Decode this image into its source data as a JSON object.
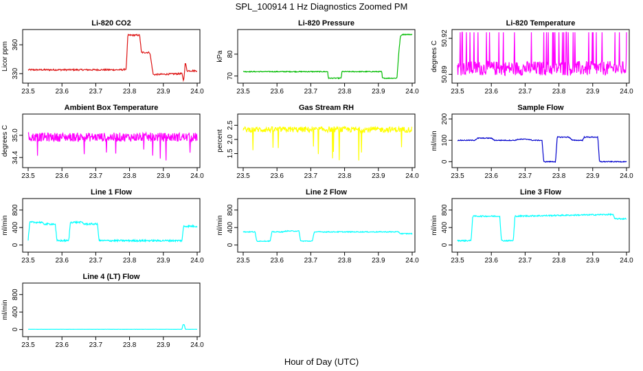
{
  "figure": {
    "title": "SPL_100914  1 Hz Diagnostics Zoomed PM",
    "xlabel": "Hour of Day (UTC)"
  },
  "chart_data": [
    {
      "type": "line",
      "title": "Li-820 CO2",
      "ylabel": "Licor ppm",
      "color": "#dd1111",
      "xlim": [
        23.5,
        24.0
      ],
      "ylim": [
        323,
        373
      ],
      "xticks": [
        "23.5",
        "23.6",
        "23.7",
        "23.8",
        "23.9",
        "24.0"
      ],
      "yticks": [
        {
          "v": 330,
          "label": "330"
        },
        {
          "v": 360,
          "label": "360"
        }
      ],
      "x": [
        23.5,
        23.6,
        23.7,
        23.78,
        23.79,
        23.795,
        23.83,
        23.835,
        23.86,
        23.87,
        23.955,
        23.96,
        23.965,
        23.97,
        24.0
      ],
      "y": [
        334,
        334,
        334,
        334,
        335,
        370,
        370,
        352,
        352,
        329,
        330,
        322,
        342,
        333,
        333
      ],
      "noise": 0.8
    },
    {
      "type": "line",
      "title": "Li-820 Pressure",
      "ylabel": "kPa",
      "color": "#00bb00",
      "xlim": [
        23.5,
        24.0
      ],
      "ylim": [
        68,
        90
      ],
      "xticks": [
        "23.5",
        "23.6",
        "23.7",
        "23.8",
        "23.9",
        "24.0"
      ],
      "yticks": [
        {
          "v": 70,
          "label": "70"
        },
        {
          "v": 80,
          "label": "80"
        }
      ],
      "x": [
        23.5,
        23.75,
        23.752,
        23.79,
        23.792,
        23.91,
        23.912,
        23.955,
        23.96,
        23.965,
        23.97,
        24.0
      ],
      "y": [
        72,
        72,
        69,
        69,
        72,
        72,
        69,
        69,
        80,
        88,
        89,
        89
      ],
      "noise": 0.2
    },
    {
      "type": "line",
      "title": "Li-820 Temperature",
      "ylabel": "degrees C",
      "color": "#ff00ff",
      "xlim": [
        23.5,
        24.0
      ],
      "ylim": [
        50.885,
        50.925
      ],
      "xticks": [
        "23.5",
        "23.6",
        "23.7",
        "23.8",
        "23.9",
        "24.0"
      ],
      "yticks": [
        {
          "v": 50.89,
          "label": "50.89"
        },
        {
          "v": 50.92,
          "label": "50.92"
        }
      ],
      "x": [
        23.5,
        24.0
      ],
      "y": [
        50.895,
        50.895
      ],
      "noise": 0.006,
      "spikes_to": 50.925
    },
    {
      "type": "line",
      "title": "Ambient Box Temperature",
      "ylabel": "degrees C",
      "color": "#ff00ff",
      "xlim": [
        23.5,
        24.0
      ],
      "ylim": [
        34.2,
        35.5
      ],
      "xticks": [
        "23.5",
        "23.6",
        "23.7",
        "23.8",
        "23.9",
        "24.0"
      ],
      "yticks": [
        {
          "v": 34.4,
          "label": "34.4"
        },
        {
          "v": 35.0,
          "label": "35.0"
        }
      ],
      "x": [
        23.5,
        24.0
      ],
      "y": [
        34.95,
        34.95
      ],
      "noise": 0.12,
      "dips_to": 34.3
    },
    {
      "type": "line",
      "title": "Gas Stream RH",
      "ylabel": "percent",
      "color": "#ffff00",
      "xlim": [
        23.5,
        24.0
      ],
      "ylim": [
        1.1,
        2.8
      ],
      "xticks": [
        "23.5",
        "23.6",
        "23.7",
        "23.8",
        "23.9",
        "24.0"
      ],
      "yticks": [
        {
          "v": 1.5,
          "label": "1.5"
        },
        {
          "v": 2.0,
          "label": "2.0"
        },
        {
          "v": 2.5,
          "label": "2.5"
        }
      ],
      "x": [
        23.5,
        24.0
      ],
      "y": [
        2.35,
        2.35
      ],
      "noise": 0.1,
      "dips_to": 1.2
    },
    {
      "type": "line",
      "title": "Sample Flow",
      "ylabel": "ml/min",
      "color": "#0000cc",
      "xlim": [
        23.5,
        24.0
      ],
      "ylim": [
        -15,
        210
      ],
      "xticks": [
        "23.5",
        "23.6",
        "23.7",
        "23.8",
        "23.9",
        "24.0"
      ],
      "yticks": [
        {
          "v": 0,
          "label": "0"
        },
        {
          "v": 100,
          "label": "100"
        },
        {
          "v": 200,
          "label": "200"
        }
      ],
      "x": [
        23.5,
        23.55,
        23.56,
        23.6,
        23.61,
        23.67,
        23.68,
        23.71,
        23.72,
        23.75,
        23.755,
        23.79,
        23.795,
        23.83,
        23.84,
        23.87,
        23.875,
        23.915,
        23.92,
        24.0
      ],
      "y": [
        100,
        100,
        110,
        110,
        100,
        100,
        105,
        105,
        100,
        100,
        0,
        0,
        115,
        115,
        100,
        100,
        115,
        115,
        0,
        0
      ],
      "noise": 2
    },
    {
      "type": "line",
      "title": "Line 1 Flow",
      "ylabel": "ml/min",
      "color": "#00ffff",
      "xlim": [
        23.5,
        24.0
      ],
      "ylim": [
        -100,
        1000
      ],
      "xticks": [
        "23.5",
        "23.6",
        "23.7",
        "23.8",
        "23.9",
        "24.0"
      ],
      "yticks": [
        {
          "v": 0,
          "label": "0"
        },
        {
          "v": 400,
          "label": "400"
        },
        {
          "v": 800,
          "label": "800"
        }
      ],
      "x": [
        23.5,
        23.505,
        23.54,
        23.545,
        23.58,
        23.585,
        23.62,
        23.625,
        23.66,
        23.665,
        23.705,
        23.71,
        23.955,
        23.96,
        24.0
      ],
      "y": [
        120,
        520,
        520,
        480,
        480,
        100,
        100,
        520,
        520,
        480,
        480,
        100,
        100,
        430,
        430
      ],
      "noise": 20
    },
    {
      "type": "line",
      "title": "Line 2 Flow",
      "ylabel": "ml/min",
      "color": "#00ffff",
      "xlim": [
        23.5,
        24.0
      ],
      "ylim": [
        -100,
        1000
      ],
      "xticks": [
        "23.5",
        "23.6",
        "23.7",
        "23.8",
        "23.9",
        "24.0"
      ],
      "yticks": [
        {
          "v": 0,
          "label": "0"
        },
        {
          "v": 400,
          "label": "400"
        },
        {
          "v": 800,
          "label": "800"
        }
      ],
      "x": [
        23.5,
        23.535,
        23.54,
        23.58,
        23.585,
        23.62,
        23.625,
        23.665,
        23.67,
        23.705,
        23.71,
        23.96,
        23.965,
        24.0
      ],
      "y": [
        300,
        300,
        90,
        90,
        300,
        300,
        320,
        320,
        90,
        90,
        300,
        300,
        260,
        260
      ],
      "noise": 10
    },
    {
      "type": "line",
      "title": "Line 3 Flow",
      "ylabel": "ml/min",
      "color": "#00ffff",
      "xlim": [
        23.5,
        24.0
      ],
      "ylim": [
        -100,
        1000
      ],
      "xticks": [
        "23.5",
        "23.6",
        "23.7",
        "23.8",
        "23.9",
        "24.0"
      ],
      "yticks": [
        {
          "v": 0,
          "label": "0"
        },
        {
          "v": 400,
          "label": "400"
        },
        {
          "v": 800,
          "label": "800"
        }
      ],
      "x": [
        23.5,
        23.505,
        23.54,
        23.545,
        23.625,
        23.63,
        23.665,
        23.67,
        23.96,
        23.965,
        24.0
      ],
      "y": [
        100,
        100,
        100,
        660,
        660,
        100,
        100,
        660,
        700,
        600,
        600
      ],
      "noise": 15
    },
    {
      "type": "line",
      "title": "Line 4 (LT) Flow",
      "ylabel": "ml/min",
      "color": "#00ffff",
      "xlim": [
        23.5,
        24.0
      ],
      "ylim": [
        -100,
        1000
      ],
      "xticks": [
        "23.5",
        "23.6",
        "23.7",
        "23.8",
        "23.9",
        "24.0"
      ],
      "yticks": [
        {
          "v": 0,
          "label": "0"
        },
        {
          "v": 400,
          "label": "400"
        },
        {
          "v": 800,
          "label": "800"
        }
      ],
      "x": [
        23.5,
        23.955,
        23.958,
        23.962,
        23.965,
        24.0
      ],
      "y": [
        5,
        5,
        110,
        110,
        5,
        5
      ],
      "noise": 2
    }
  ]
}
